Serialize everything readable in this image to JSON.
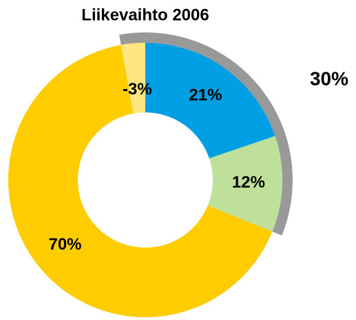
{
  "chart_data": {
    "type": "pie",
    "title": "Liikevaihto 2006",
    "values": [
      21,
      12,
      70,
      -3
    ],
    "value_labels": [
      "21%",
      "12%",
      "70%",
      "-3%"
    ],
    "colors": [
      "#009fe3",
      "#bfe09a",
      "#ffcc00",
      "#ffe680"
    ],
    "annotation": "30%"
  }
}
